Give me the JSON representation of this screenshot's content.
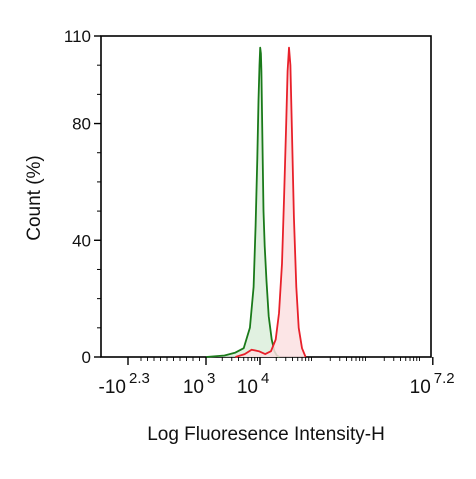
{
  "chart_data": {
    "type": "area",
    "title": "",
    "xlabel": "Log Fluoresence Intensity-H",
    "ylabel": "Count  (%)",
    "x_scale": "log (biexponential, negative region near -10^2.3)",
    "xlim": [
      -200,
      15848932
    ],
    "ylim": [
      0,
      110
    ],
    "y_ticks": [
      0,
      40,
      80,
      110
    ],
    "x_ticks": [
      {
        "base": "-10",
        "exp": "2.3",
        "value": -200
      },
      {
        "base": "10",
        "exp": "3",
        "value": 1000
      },
      {
        "base": "10",
        "exp": "4",
        "value": 10000
      },
      {
        "base": "10",
        "exp": "7.2",
        "value": 15848932
      }
    ],
    "legend": "none",
    "grid": false,
    "series": [
      {
        "color": "#1a7a1a",
        "fill": "#dcefdc",
        "x": [
          1000,
          2200,
          3500,
          5000,
          6500,
          7600,
          8300,
          8900,
          9400,
          9800,
          10100,
          10400,
          10600,
          10900,
          11200,
          11600,
          12200,
          13200,
          14500,
          16500,
          18500,
          20500,
          23000
        ],
        "y": [
          0,
          0.5,
          1.5,
          3,
          10,
          24,
          45,
          68,
          88,
          100,
          106,
          104,
          98,
          84,
          68,
          50,
          38,
          26,
          14,
          6,
          2,
          0.5,
          0
        ]
      },
      {
        "color": "#e8202a",
        "fill": "#fbe0e2",
        "x": [
          3500,
          5200,
          7000,
          9500,
          12500,
          16000,
          19500,
          22500,
          25500,
          28000,
          30500,
          32500,
          34500,
          36500,
          39000,
          42500,
          47000,
          52000,
          60000,
          70000
        ],
        "y": [
          0,
          1,
          2.5,
          2,
          1,
          2,
          6,
          15,
          32,
          55,
          80,
          98,
          106,
          100,
          78,
          48,
          24,
          10,
          3,
          0
        ]
      }
    ]
  }
}
